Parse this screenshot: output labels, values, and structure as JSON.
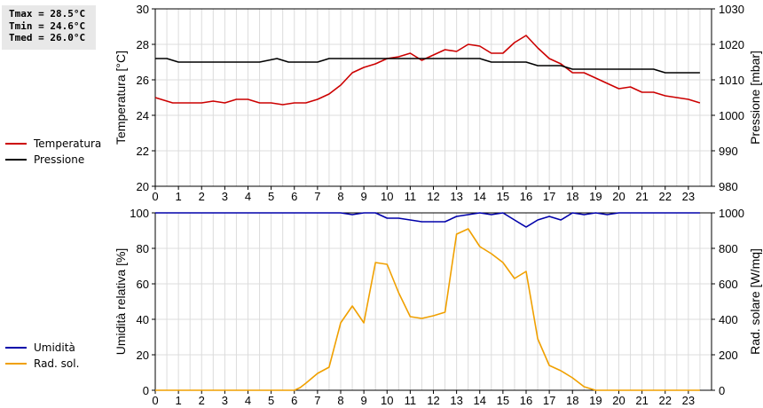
{
  "stats": {
    "tmax": "Tmax = 28.5°C",
    "tmin": "Tmin = 24.6°C",
    "tmed": "Tmed = 26.0°C"
  },
  "legend": {
    "top": [
      {
        "label": "Temperatura",
        "color": "#cc0000"
      },
      {
        "label": "Pressione",
        "color": "#000000"
      }
    ],
    "bottom": [
      {
        "label": "Umidità",
        "color": "#0000aa"
      },
      {
        "label": "Rad. sol.",
        "color": "#f0a000"
      }
    ]
  },
  "chart_data": [
    {
      "type": "line",
      "x_ticks": [
        0,
        1,
        2,
        3,
        4,
        5,
        6,
        7,
        8,
        9,
        10,
        11,
        12,
        13,
        14,
        15,
        16,
        17,
        18,
        19,
        20,
        21,
        22,
        23
      ],
      "xlim": [
        0,
        24
      ],
      "grid": true,
      "y_left": {
        "label": "Temperatura [°C]",
        "lim": [
          20,
          30
        ],
        "ticks": [
          20,
          22,
          24,
          26,
          28,
          30
        ]
      },
      "y_right": {
        "label": "Pressione [mbar]",
        "lim": [
          980,
          1030
        ],
        "ticks": [
          980,
          990,
          1000,
          1010,
          1020,
          1030
        ]
      },
      "series": [
        {
          "name": "Temperatura",
          "axis": "left",
          "color": "#cc0000",
          "x": [
            0,
            0.25,
            0.5,
            0.75,
            1,
            1.5,
            2,
            2.5,
            3,
            3.5,
            4,
            4.5,
            5,
            5.5,
            6,
            6.5,
            7,
            7.5,
            8,
            8.5,
            9,
            9.5,
            10,
            10.5,
            11,
            11.25,
            11.5,
            12,
            12.5,
            13,
            13.5,
            14,
            14.5,
            15,
            15.5,
            16,
            16.5,
            17,
            17.5,
            18,
            18.5,
            19,
            19.5,
            20,
            20.5,
            21,
            21.5,
            22,
            22.5,
            23,
            23.5
          ],
          "y": [
            25.0,
            24.9,
            24.8,
            24.7,
            24.7,
            24.7,
            24.7,
            24.8,
            24.7,
            24.9,
            24.9,
            24.7,
            24.7,
            24.6,
            24.7,
            24.7,
            24.9,
            25.2,
            25.7,
            26.4,
            26.7,
            26.9,
            27.2,
            27.3,
            27.5,
            27.3,
            27.1,
            27.4,
            27.7,
            27.6,
            28.0,
            27.9,
            27.5,
            27.5,
            28.1,
            28.5,
            27.8,
            27.2,
            26.9,
            26.4,
            26.4,
            26.1,
            25.8,
            25.5,
            25.6,
            25.3,
            25.3,
            25.1,
            25.0,
            24.9,
            24.7
          ]
        },
        {
          "name": "Pressione",
          "axis": "right",
          "color": "#000000",
          "x": [
            0,
            0.5,
            1,
            1.5,
            4.5,
            5.25,
            5.75,
            6,
            7,
            7.5,
            8,
            10,
            11,
            14,
            14.5,
            16,
            16.5,
            17,
            17.5,
            18,
            21,
            21.5,
            22,
            23.5
          ],
          "y": [
            1016,
            1016,
            1015,
            1015,
            1015,
            1016,
            1015,
            1015,
            1015,
            1016,
            1016,
            1016,
            1016,
            1016,
            1015,
            1015,
            1014,
            1014,
            1014,
            1013,
            1013,
            1013,
            1012,
            1012
          ]
        }
      ]
    },
    {
      "type": "line",
      "x_ticks": [
        0,
        1,
        2,
        3,
        4,
        5,
        6,
        7,
        8,
        9,
        10,
        11,
        12,
        13,
        14,
        15,
        16,
        17,
        18,
        19,
        20,
        21,
        22,
        23
      ],
      "xlim": [
        0,
        24
      ],
      "grid": true,
      "y_left": {
        "label": "Umidità relativa [%]",
        "lim": [
          0,
          100
        ],
        "ticks": [
          0,
          20,
          40,
          60,
          80,
          100
        ]
      },
      "y_right": {
        "label": "Rad. solare [W/mq]",
        "lim": [
          0,
          1000
        ],
        "ticks": [
          0,
          200,
          400,
          600,
          800,
          1000
        ]
      },
      "series": [
        {
          "name": "Umidità",
          "axis": "left",
          "color": "#0000aa",
          "x": [
            0,
            8,
            8.5,
            9,
            9.5,
            10,
            10.5,
            11,
            11.5,
            12,
            12.5,
            13,
            13.5,
            14,
            14.5,
            15,
            15.5,
            16,
            16.5,
            17,
            17.5,
            18,
            18.5,
            19,
            19.5,
            20,
            23.5
          ],
          "y": [
            100,
            100,
            99,
            100,
            100,
            97,
            97,
            96,
            95,
            95,
            95,
            98,
            99,
            100,
            99,
            100,
            96,
            92,
            96,
            98,
            96,
            100,
            99,
            100,
            99,
            100,
            100
          ]
        },
        {
          "name": "Rad. sol.",
          "axis": "right",
          "color": "#f0a000",
          "x": [
            0,
            6,
            6.25,
            6.5,
            7,
            7.5,
            8,
            8.5,
            9,
            9.5,
            10,
            10.5,
            11,
            11.5,
            12,
            12.5,
            13,
            13.5,
            14,
            14.5,
            15,
            15.5,
            16,
            16.5,
            17,
            17.5,
            18,
            18.5,
            19,
            23.5
          ],
          "y": [
            0,
            0,
            15,
            40,
            95,
            130,
            380,
            475,
            380,
            720,
            710,
            550,
            415,
            405,
            420,
            440,
            880,
            910,
            810,
            770,
            720,
            630,
            670,
            290,
            140,
            110,
            70,
            20,
            0,
            0
          ]
        }
      ]
    }
  ]
}
